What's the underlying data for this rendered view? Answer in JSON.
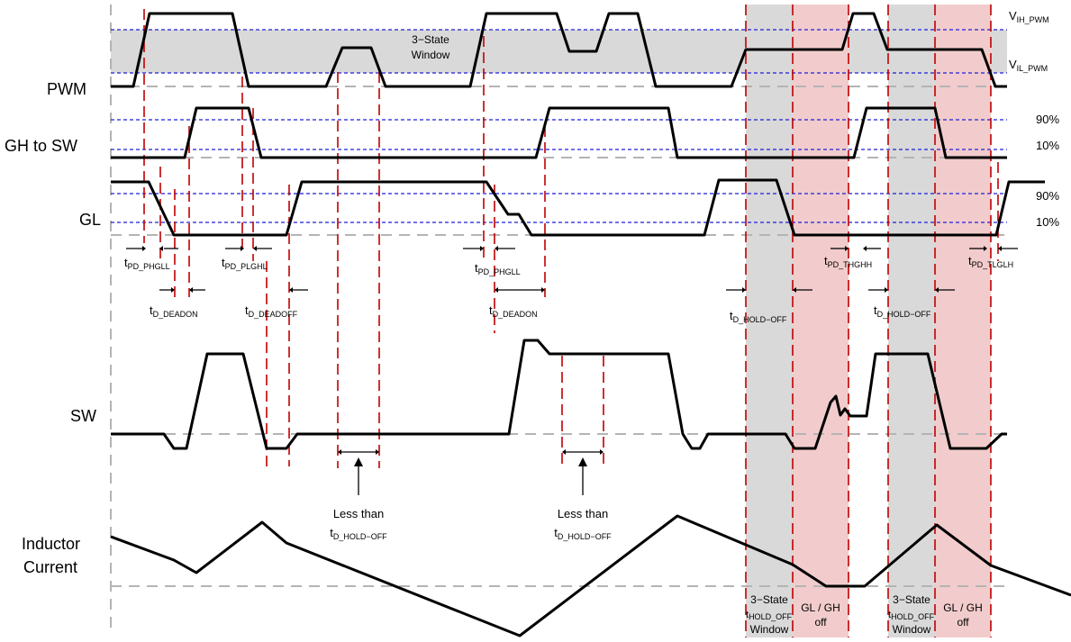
{
  "signals": {
    "pwm": "PWM",
    "gh_to_sw": "GH to SW",
    "gl": "GL",
    "sw": "SW",
    "inductor_line1": "Inductor",
    "inductor_line2": "Current"
  },
  "thresholds": {
    "vih_main": "V",
    "vih_sub": "IH_PWM",
    "vil_main": "V",
    "vil_sub": "IL_PWM",
    "gh_90": "90%",
    "gh_10": "10%",
    "gl_90": "90%",
    "gl_10": "10%"
  },
  "window_label_line1": "3−State",
  "window_label_line2": "Window",
  "timings": [
    {
      "main": "t",
      "sub": "PD_PHGLL"
    },
    {
      "main": "t",
      "sub": "PD_PLGHL"
    },
    {
      "main": "t",
      "sub": "PD_PHGLL"
    },
    {
      "main": "t",
      "sub": "PD_THGHH"
    },
    {
      "main": "t",
      "sub": "PD_TLGLH"
    },
    {
      "main": "t",
      "sub": "D_DEADON"
    },
    {
      "main": "t",
      "sub": "D_DEADOFF"
    },
    {
      "main": "t",
      "sub": "D_DEADON"
    },
    {
      "main": "t",
      "sub": "D_HOLD−OFF"
    },
    {
      "main": "t",
      "sub": "D_HOLD−OFF"
    }
  ],
  "less_than": [
    {
      "line1": "Less than",
      "main": "t",
      "sub": "D_HOLD−OFF"
    },
    {
      "line1": "Less than",
      "main": "t",
      "sub": "D_HOLD−OFF"
    }
  ],
  "bottom_labels": {
    "state1_line1": "3−State",
    "state1_hold_main": "t",
    "state1_hold_sub": "HOLD_OFF",
    "state1_line3": "Window",
    "gl_gh1_line1": "GL / GH",
    "gl_gh1_line2": "off",
    "state2_line1": "3−State",
    "state2_hold_main": "t",
    "state2_hold_sub": "HOLD_OFF",
    "state2_line3": "Window",
    "gl_gh2_line1": "GL / GH",
    "gl_gh2_line2": "off"
  },
  "colors": {
    "waveform": "#000000",
    "threshold_line": "#1f1fd6",
    "marker_line": "#c00000",
    "tristate_band": "#d9d9d9",
    "off_band": "#f2cccc",
    "baseline": "#b4b4b4"
  }
}
